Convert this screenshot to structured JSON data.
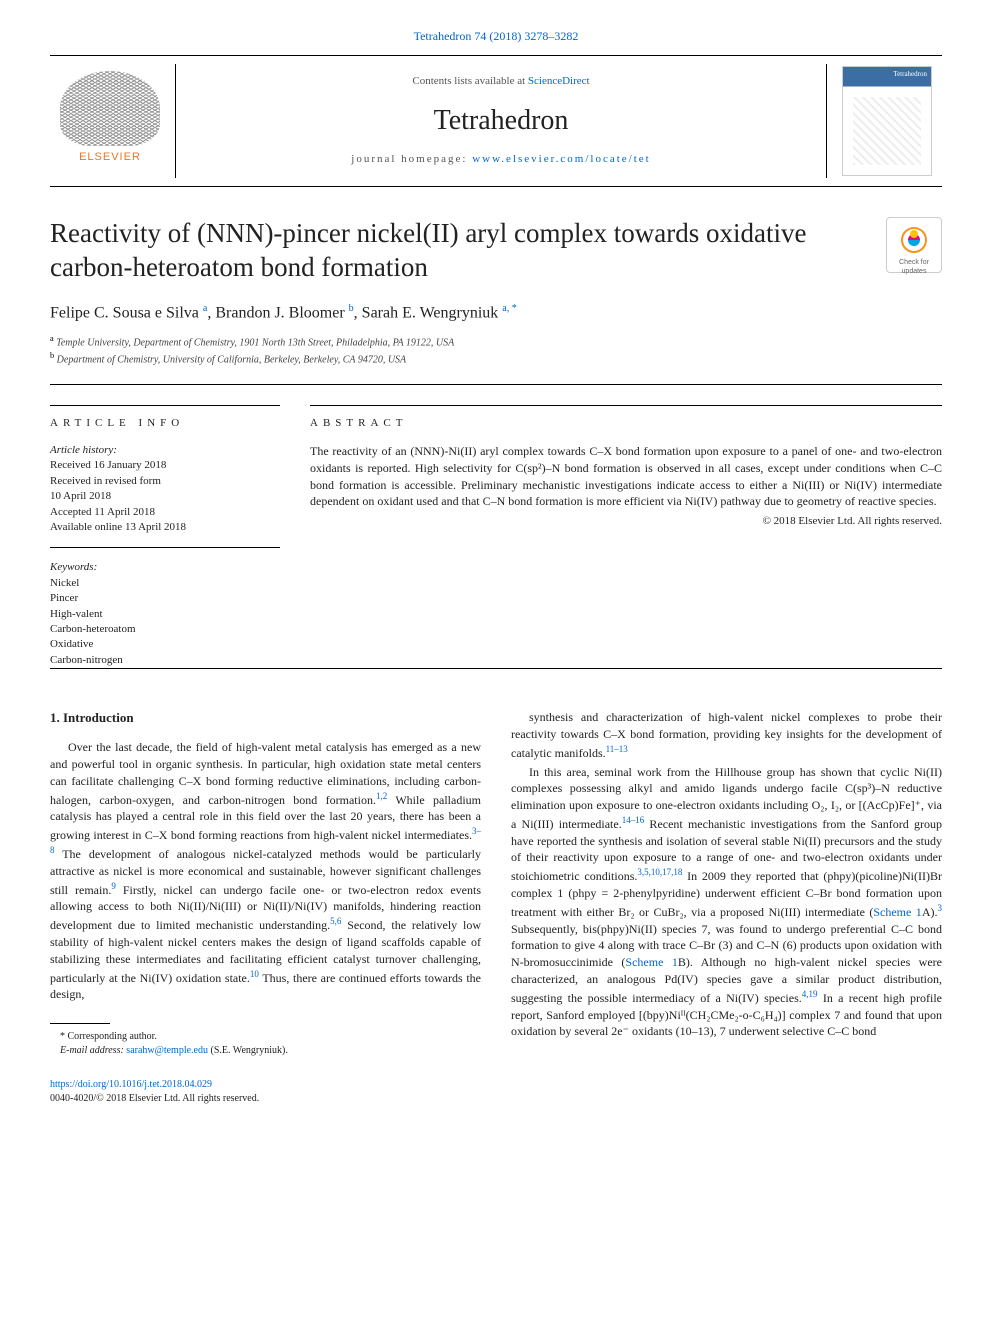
{
  "top_link": "Tetrahedron 74 (2018) 3278–3282",
  "header": {
    "contents_text": "Contents lists available at ",
    "contents_link": "ScienceDirect",
    "journal_name": "Tetrahedron",
    "homepage_label": "journal homepage: ",
    "homepage_url": "www.elsevier.com/locate/tet",
    "publisher": "ELSEVIER",
    "cover_title": "Tetrahedron"
  },
  "title": "Reactivity of (NNN)-pincer nickel(II) aryl complex towards oxidative carbon-heteroatom bond formation",
  "updates_badge": "Check for updates",
  "authors_html": "Felipe C. Sousa e Silva",
  "authors": [
    {
      "name": "Felipe C. Sousa e Silva ",
      "sup": "a"
    },
    {
      "name": ", Brandon J. Bloomer ",
      "sup": "b"
    },
    {
      "name": ", Sarah E. Wengryniuk ",
      "sup": "a, *"
    }
  ],
  "affiliations": [
    {
      "sup": "a",
      "text": " Temple University, Department of Chemistry, 1901 North 13th Street, Philadelphia, PA 19122, USA"
    },
    {
      "sup": "b",
      "text": " Department of Chemistry, University of California, Berkeley, Berkeley, CA 94720, USA"
    }
  ],
  "article_info": {
    "label": "ARTICLE INFO",
    "history_label": "Article history:",
    "history": [
      "Received 16 January 2018",
      "Received in revised form",
      "10 April 2018",
      "Accepted 11 April 2018",
      "Available online 13 April 2018"
    ],
    "keywords_label": "Keywords:",
    "keywords": [
      "Nickel",
      "Pincer",
      "High-valent",
      "Carbon-heteroatom",
      "Oxidative",
      "Carbon-nitrogen"
    ]
  },
  "abstract": {
    "label": "ABSTRACT",
    "text": "The reactivity of an (NNN)-Ni(II) aryl complex towards C–X bond formation upon exposure to a panel of one- and two-electron oxidants is reported. High selectivity for C(sp²)–N bond formation is observed in all cases, except under conditions when C–C bond formation is accessible. Preliminary mechanistic investigations indicate access to either a Ni(III) or Ni(IV) intermediate dependent on oxidant used and that C–N bond formation is more efficient via Ni(IV) pathway due to geometry of reactive species.",
    "copyright": "© 2018 Elsevier Ltd. All rights reserved."
  },
  "introduction": {
    "heading": "1. Introduction",
    "col1": [
      "Over the last decade, the field of high-valent metal catalysis has emerged as a new and powerful tool in organic synthesis. In particular, high oxidation state metal centers can facilitate challenging C–X bond forming reductive eliminations, including carbon-halogen, carbon-oxygen, and carbon-nitrogen bond formation.|1,2| While palladium catalysis has played a central role in this field over the last 20 years, there has been a growing interest in C–X bond forming reactions from high-valent nickel intermediates.|3–8| The development of analogous nickel-catalyzed methods would be particularly attractive as nickel is more economical and sustainable, however significant challenges still remain.|9| Firstly, nickel can undergo facile one- or two-electron redox events allowing access to both Ni(II)/Ni(III) or Ni(II)/Ni(IV) manifolds, hindering reaction development due to limited mechanistic understanding.|5,6| Second, the relatively low stability of high-valent nickel centers makes the design of ligand scaffolds capable of stabilizing these intermediates and facilitating efficient catalyst turnover challenging, particularly at the Ni(IV) oxidation state.|10| Thus, there are continued efforts towards the design,"
    ],
    "col2": [
      "synthesis and characterization of high-valent nickel complexes to probe their reactivity towards C–X bond formation, providing key insights for the development of catalytic manifolds.|11–13|",
      "In this area, seminal work from the Hillhouse group has shown that cyclic Ni(II) complexes possessing alkyl and amido ligands undergo facile C(sp³)–N reductive elimination upon exposure to one-electron oxidants including O₂, I₂, or [(AcCp)Fe]⁺, via a Ni(III) intermediate.|14–16| Recent mechanistic investigations from the Sanford group have reported the synthesis and isolation of several stable Ni(II) precursors and the study of their reactivity upon exposure to a range of one- and two-electron oxidants under stoichiometric conditions.|3,5,10,17,18| In 2009 they reported that (phpy)(picoline)Ni(II)Br complex 1 (phpy = 2-phenylpyridine) underwent efficient C–Br bond formation upon treatment with either Br₂ or CuBr₂, via a proposed Ni(III) intermediate (|Scheme 1|A).|3| Subsequently, bis(phpy)Ni(II) species 7, was found to undergo preferential C–C bond formation to give 4 along with trace C–Br (3) and C–N (6) products upon oxidation with N-bromosuccinimide (|Scheme 1|B). Although no high-valent nickel species were characterized, an analogous Pd(IV) species gave a similar product distribution, suggesting the possible intermediacy of a Ni(IV) species.|4,19| In a recent high profile report, Sanford employed [(bpy)Niᴵᴵ(CH₂CMe₂-o-C₆H₄)] complex 7 and found that upon oxidation by several 2e⁻ oxidants (10–13), 7 underwent selective C–C bond"
    ]
  },
  "footnote": {
    "marker": "* Corresponding author.",
    "email_label": "E-mail address: ",
    "email": "sarahw@temple.edu",
    "email_suffix": " (S.E. Wengryniuk)."
  },
  "bottom": {
    "doi": "https://doi.org/10.1016/j.tet.2018.04.029",
    "issn_line": "0040-4020/© 2018 Elsevier Ltd. All rights reserved."
  },
  "colors": {
    "link": "#0066cc",
    "elsevier_orange": "#e87722",
    "badge_ring": "#f7931e",
    "badge_fill": "#00a4e4"
  }
}
